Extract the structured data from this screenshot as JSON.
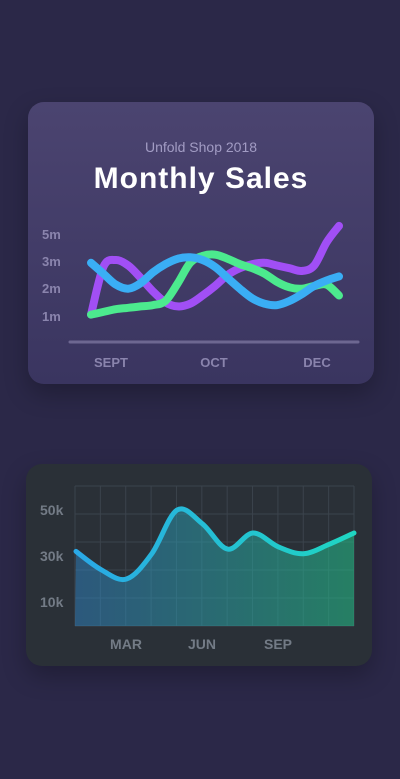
{
  "colors": {
    "background": "#2b2848",
    "purple": "#a14ff5",
    "green": "#4cea8e",
    "blue": "#3aaef5",
    "area_line": "#22b5df"
  },
  "chart_data": [
    {
      "type": "line",
      "subtitle": "Unfold Shop 2018",
      "title": "Monthly Sales",
      "categories": [
        "SEPT",
        "OCT",
        "DEC"
      ],
      "y_ticks": [
        "1m",
        "2m",
        "3m",
        "5m"
      ],
      "x": [
        0,
        0.5,
        1,
        1.5,
        2,
        2.5,
        3,
        3.5,
        4,
        4.5,
        5,
        5.5,
        6,
        6.5,
        7,
        7.5,
        8,
        8.5,
        9,
        9.5,
        10
      ],
      "series": [
        {
          "color": "#a14ff5",
          "values": [
            1.05,
            2.8,
            3.05,
            2.85,
            2.4,
            1.9,
            1.5,
            1.35,
            1.45,
            1.75,
            2.1,
            2.5,
            2.75,
            2.9,
            2.95,
            2.85,
            2.75,
            2.65,
            2.85,
            3.7,
            4.3
          ]
        },
        {
          "color": "#4cea8e",
          "values": [
            1.05,
            1.15,
            1.25,
            1.3,
            1.35,
            1.4,
            1.55,
            2.2,
            2.95,
            3.2,
            3.25,
            3.1,
            2.9,
            2.75,
            2.55,
            2.25,
            2.05,
            2.0,
            2.1,
            2.15,
            1.75
          ]
        },
        {
          "color": "#3aaef5",
          "values": [
            2.95,
            2.55,
            2.15,
            2.0,
            2.2,
            2.6,
            2.9,
            3.1,
            3.15,
            3.05,
            2.8,
            2.4,
            2.0,
            1.65,
            1.45,
            1.4,
            1.55,
            1.8,
            2.1,
            2.3,
            2.45
          ]
        }
      ]
    },
    {
      "type": "area",
      "categories": [
        "MAR",
        "JUN",
        "SEP"
      ],
      "y_ticks": [
        "10k",
        "30k",
        "50k"
      ],
      "grid": true,
      "x": [
        0,
        1,
        2,
        3,
        4,
        5,
        6,
        7,
        8,
        9,
        10,
        11
      ],
      "values": [
        32,
        24,
        20,
        31,
        50,
        44,
        33,
        40,
        34,
        31,
        35,
        40
      ]
    }
  ]
}
